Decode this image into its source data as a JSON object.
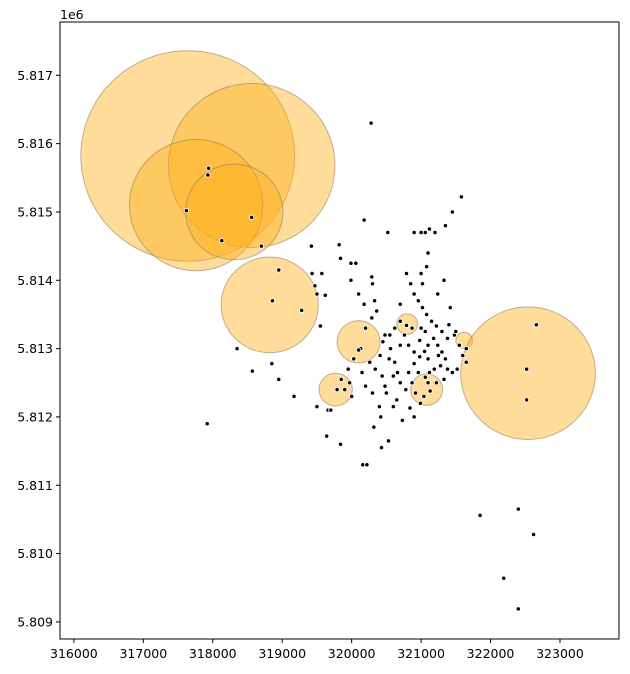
{
  "chart_data": {
    "type": "scatter",
    "title": "",
    "xlabel": "",
    "ylabel": "",
    "y_offset_text": "1e6",
    "xlim": [
      315800,
      323850
    ],
    "ylim": [
      5808750,
      5817780
    ],
    "x_ticks": [
      316000,
      317000,
      318000,
      319000,
      320000,
      321000,
      322000,
      323000
    ],
    "x_tick_labels": [
      "316000",
      "317000",
      "318000",
      "319000",
      "320000",
      "321000",
      "322000",
      "323000"
    ],
    "y_ticks": [
      5809000,
      5810000,
      5811000,
      5812000,
      5813000,
      5814000,
      5815000,
      5816000,
      5817000
    ],
    "y_tick_labels": [
      "5.809",
      "5.810",
      "5.811",
      "5.812",
      "5.813",
      "5.814",
      "5.815",
      "5.816",
      "5.817"
    ],
    "grid": false,
    "legend": "none",
    "colors": {
      "circle_fill": "#ffb21c",
      "circle_stroke": "#8a7a5a",
      "point_fill": "#000000",
      "point_edge": "#ffffff"
    },
    "circles": [
      {
        "x": 317640,
        "y": 5815820,
        "r": 1540
      },
      {
        "x": 318560,
        "y": 5815680,
        "r": 1200
      },
      {
        "x": 317760,
        "y": 5815100,
        "r": 960
      },
      {
        "x": 318310,
        "y": 5815000,
        "r": 700
      },
      {
        "x": 318820,
        "y": 5813640,
        "r": 700
      },
      {
        "x": 320100,
        "y": 5813100,
        "r": 310
      },
      {
        "x": 320800,
        "y": 5813360,
        "r": 150
      },
      {
        "x": 319770,
        "y": 5812400,
        "r": 240
      },
      {
        "x": 321080,
        "y": 5812400,
        "r": 230
      },
      {
        "x": 321620,
        "y": 5813120,
        "r": 120
      },
      {
        "x": 322540,
        "y": 5812640,
        "r": 970
      }
    ],
    "points": [
      [
        317940,
        5815640
      ],
      [
        317930,
        5815540
      ],
      [
        317620,
        5815020
      ],
      [
        318560,
        5814920
      ],
      [
        318130,
        5814580
      ],
      [
        318700,
        5814500
      ],
      [
        318950,
        5814150
      ],
      [
        318860,
        5813700
      ],
      [
        319280,
        5813560
      ],
      [
        319550,
        5813330
      ],
      [
        318350,
        5813000
      ],
      [
        318850,
        5812780
      ],
      [
        318570,
        5812670
      ],
      [
        318950,
        5812550
      ],
      [
        319170,
        5812300
      ],
      [
        319500,
        5812150
      ],
      [
        319660,
        5812100
      ],
      [
        319640,
        5811720
      ],
      [
        319840,
        5811600
      ],
      [
        317920,
        5811900
      ],
      [
        319420,
        5814500
      ],
      [
        319820,
        5814520
      ],
      [
        319570,
        5814100
      ],
      [
        319430,
        5814100
      ],
      [
        319470,
        5813920
      ],
      [
        319500,
        5813800
      ],
      [
        319620,
        5813780
      ],
      [
        319840,
        5814320
      ],
      [
        319990,
        5814250
      ],
      [
        320060,
        5814250
      ],
      [
        319990,
        5814000
      ],
      [
        320180,
        5814880
      ],
      [
        320280,
        5816300
      ],
      [
        320520,
        5814700
      ],
      [
        320290,
        5814050
      ],
      [
        320300,
        5813950
      ],
      [
        320100,
        5813800
      ],
      [
        320180,
        5813650
      ],
      [
        320330,
        5813700
      ],
      [
        320360,
        5813550
      ],
      [
        320290,
        5813450
      ],
      [
        320200,
        5813300
      ],
      [
        320130,
        5813000
      ],
      [
        320030,
        5812850
      ],
      [
        319950,
        5812700
      ],
      [
        319970,
        5812500
      ],
      [
        319900,
        5812400
      ],
      [
        320000,
        5812300
      ],
      [
        319850,
        5812550
      ],
      [
        319700,
        5812100
      ],
      [
        320200,
        5812450
      ],
      [
        320160,
        5811300
      ],
      [
        320220,
        5811300
      ],
      [
        320320,
        5811850
      ],
      [
        320420,
        5812000
      ],
      [
        320530,
        5811650
      ],
      [
        320430,
        5811550
      ],
      [
        320730,
        5811950
      ],
      [
        320900,
        5812000
      ],
      [
        320840,
        5812130
      ],
      [
        320500,
        5812350
      ],
      [
        320440,
        5812600
      ],
      [
        320340,
        5812700
      ],
      [
        320260,
        5812800
      ],
      [
        320410,
        5812900
      ],
      [
        320450,
        5813100
      ],
      [
        320480,
        5813200
      ],
      [
        320560,
        5813000
      ],
      [
        320620,
        5812800
      ],
      [
        320660,
        5812650
      ],
      [
        320700,
        5812500
      ],
      [
        320780,
        5812400
      ],
      [
        320820,
        5812650
      ],
      [
        320870,
        5812500
      ],
      [
        320920,
        5812350
      ],
      [
        320990,
        5812200
      ],
      [
        321040,
        5812300
      ],
      [
        321130,
        5812380
      ],
      [
        321220,
        5812500
      ],
      [
        321330,
        5812550
      ],
      [
        321380,
        5812700
      ],
      [
        321450,
        5812650
      ],
      [
        321520,
        5812700
      ],
      [
        321600,
        5812900
      ],
      [
        321650,
        5813000
      ],
      [
        321650,
        5812800
      ],
      [
        321550,
        5813050
      ],
      [
        321480,
        5813200
      ],
      [
        321380,
        5813150
      ],
      [
        321300,
        5813250
      ],
      [
        321220,
        5813330
      ],
      [
        321150,
        5813400
      ],
      [
        321080,
        5813500
      ],
      [
        321020,
        5813600
      ],
      [
        320960,
        5813700
      ],
      [
        320900,
        5813800
      ],
      [
        320850,
        5813950
      ],
      [
        320790,
        5814100
      ],
      [
        320700,
        5813400
      ],
      [
        320620,
        5813300
      ],
      [
        320550,
        5813200
      ],
      [
        320760,
        5813200
      ],
      [
        320820,
        5813050
      ],
      [
        320900,
        5812950
      ],
      [
        320980,
        5812880
      ],
      [
        321050,
        5812960
      ],
      [
        321100,
        5813050
      ],
      [
        321180,
        5813150
      ],
      [
        321240,
        5813050
      ],
      [
        321300,
        5812950
      ],
      [
        321350,
        5812850
      ],
      [
        321280,
        5812750
      ],
      [
        321190,
        5812700
      ],
      [
        321120,
        5812650
      ],
      [
        321060,
        5812580
      ],
      [
        320960,
        5812650
      ],
      [
        320900,
        5812780
      ],
      [
        320980,
        5813120
      ],
      [
        321060,
        5813250
      ],
      [
        321000,
        5814100
      ],
      [
        321020,
        5813950
      ],
      [
        321080,
        5814200
      ],
      [
        321100,
        5814400
      ],
      [
        321060,
        5814700
      ],
      [
        321120,
        5814750
      ],
      [
        321200,
        5814700
      ],
      [
        321000,
        5814700
      ],
      [
        320900,
        5814700
      ],
      [
        321350,
        5814800
      ],
      [
        321450,
        5815000
      ],
      [
        321580,
        5815220
      ],
      [
        321330,
        5814000
      ],
      [
        321240,
        5813800
      ],
      [
        321420,
        5813600
      ],
      [
        321250,
        5812900
      ],
      [
        321400,
        5813350
      ],
      [
        321500,
        5813250
      ],
      [
        321000,
        5813300
      ],
      [
        320870,
        5813300
      ],
      [
        320700,
        5813650
      ],
      [
        320650,
        5812250
      ],
      [
        320600,
        5812150
      ],
      [
        320400,
        5812150
      ],
      [
        320300,
        5812350
      ],
      [
        320150,
        5812650
      ],
      [
        320540,
        5812850
      ],
      [
        320480,
        5812450
      ],
      [
        320700,
        5813050
      ],
      [
        320600,
        5812600
      ],
      [
        321100,
        5812850
      ],
      [
        321850,
        5810560
      ],
      [
        322400,
        5810650
      ],
      [
        322620,
        5810280
      ],
      [
        322190,
        5809640
      ],
      [
        322400,
        5809190
      ],
      [
        322660,
        5813350
      ],
      [
        322520,
        5812700
      ],
      [
        322520,
        5812250
      ],
      [
        319790,
        5812400
      ],
      [
        321100,
        5812500
      ],
      [
        320100,
        5812980
      ],
      [
        320790,
        5813340
      ]
    ]
  }
}
